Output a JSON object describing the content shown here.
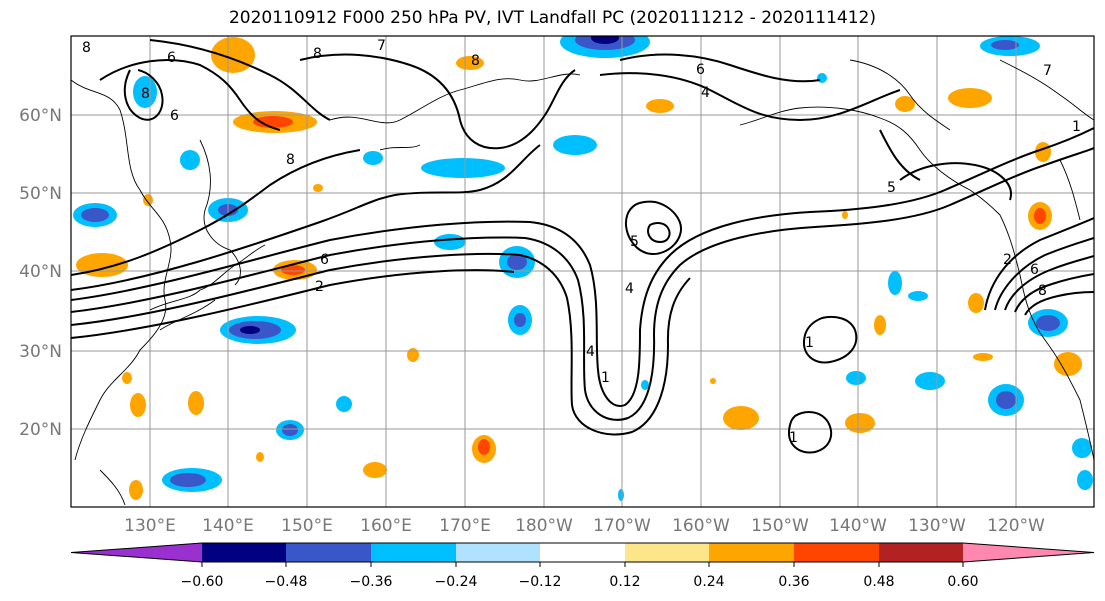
{
  "title": "2020110912 F000 250 hPa PV, IVT Landfall PC (2020111212 - 2020111412)",
  "lat_labels": [
    "60°N",
    "50°N",
    "40°N",
    "30°N",
    "20°N"
  ],
  "lon_labels": [
    "130°E",
    "140°E",
    "150°E",
    "160°E",
    "170°E",
    "180°W",
    "170°W",
    "160°W",
    "150°W",
    "140°W",
    "130°W",
    "120°W"
  ],
  "colorbar": {
    "ticks": [
      "−0.60",
      "−0.48",
      "−0.36",
      "−0.24",
      "−0.12",
      "0.12",
      "0.24",
      "0.36",
      "0.48",
      "0.60"
    ],
    "colors": [
      "#9b30d0",
      "#000080",
      "#3a57c9",
      "#00bfff",
      "#b0e2ff",
      "#ffffff",
      "#fde68a",
      "#ffa500",
      "#ff4500",
      "#b22222",
      "#ff88b0"
    ]
  },
  "contour_labels": [
    "8",
    "6",
    "8",
    "8",
    "6",
    "7",
    "6",
    "4",
    "8",
    "8",
    "6",
    "2",
    "5",
    "4",
    "4",
    "1",
    "1",
    "5",
    "7",
    "2",
    "6",
    "8",
    "1",
    "1"
  ],
  "colors": {
    "map_border": "#000000",
    "grid": "#999999",
    "axis_label": "#777777"
  }
}
